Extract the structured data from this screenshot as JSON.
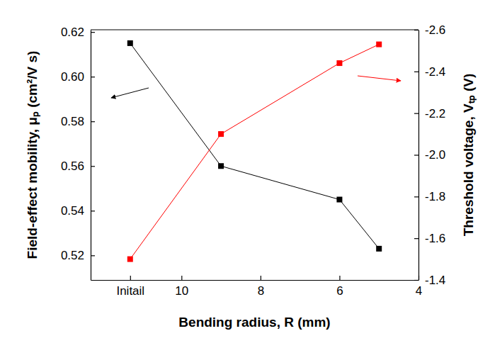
{
  "chart_data": {
    "type": "line",
    "x_label": "Bending radius, R (mm)",
    "y_label": "Field-effect mobility, μₚ (cm²/V s)",
    "y2_label": "Threshold voltage, Vₜₚ (V)",
    "x": [
      11.3,
      9,
      6,
      5
    ],
    "xlim": [
      12.3,
      4
    ],
    "xticks": [
      {
        "value": 11.3,
        "label": "Initail"
      },
      10,
      8,
      6,
      4
    ],
    "ylim": [
      0.509,
      0.621
    ],
    "yticks": [
      0.52,
      0.54,
      0.56,
      0.58,
      {
        "value": 0.6,
        "label": "0.60"
      },
      0.62
    ],
    "y2lim": [
      -1.4,
      -2.6
    ],
    "y2ticks": [
      -1.4,
      -1.6,
      -1.8,
      {
        "value": -2.0,
        "label": "-2.0"
      },
      -2.2,
      -2.4,
      -2.6
    ],
    "series": [
      {
        "color": "#000000",
        "marker": "square",
        "values": [
          0.615,
          0.56,
          0.545,
          0.523
        ]
      },
      {
        "color": "#ff0000",
        "marker": "square",
        "axis": "y2",
        "values": [
          -1.5,
          -2.1,
          -2.44,
          -2.53
        ]
      }
    ]
  }
}
